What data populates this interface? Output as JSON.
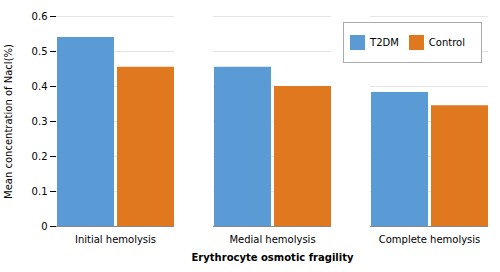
{
  "chart_data": {
    "type": "bar",
    "categories": [
      "Initial hemolysis",
      "Medial hemolysis",
      "Complete hemolysis"
    ],
    "series": [
      {
        "name": "T2DM",
        "color": "#5B9BD5",
        "values": [
          0.54,
          0.455,
          0.383
        ]
      },
      {
        "name": "Control",
        "color": "#E07820",
        "values": [
          0.455,
          0.4,
          0.345
        ]
      }
    ],
    "xlabel": "Erythrocyte osmotic fragility",
    "ylabel": "Mean concentration of Nacl(%)",
    "ylim": [
      0,
      0.6
    ],
    "yticks": [
      0,
      0.1,
      0.2,
      0.3,
      0.4,
      0.5,
      0.6
    ],
    "grid": true,
    "legend": "upper right"
  }
}
